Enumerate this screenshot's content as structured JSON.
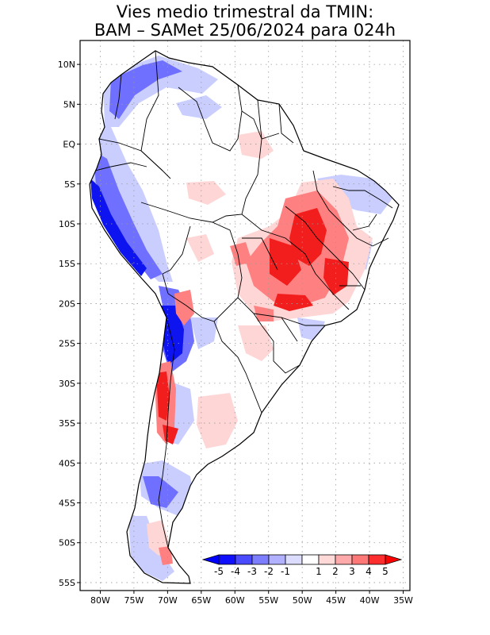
{
  "title": {
    "line1": "Vies medio trimestral da TMIN:",
    "line2": "BAM – SAMet 25/06/2024  para 024h"
  },
  "axes": {
    "lon_ticks": [
      "80W",
      "75W",
      "70W",
      "65W",
      "60W",
      "55W",
      "50W",
      "45W",
      "40W",
      "35W"
    ],
    "lat_ticks": [
      "10N",
      "5N",
      "EQ",
      "5S",
      "10S",
      "15S",
      "20S",
      "25S",
      "30S",
      "35S",
      "40S",
      "45S",
      "50S",
      "55S"
    ],
    "lon_values": [
      -80,
      -75,
      -70,
      -65,
      -60,
      -55,
      -50,
      -45,
      -40,
      -35
    ],
    "lat_values": [
      10,
      5,
      0,
      -5,
      -10,
      -15,
      -20,
      -25,
      -30,
      -35,
      -40,
      -45,
      -50,
      -55
    ],
    "lon_range": [
      -83,
      -34
    ],
    "lat_range": [
      -56,
      13
    ]
  },
  "legend": {
    "labels": [
      "-5",
      "-4",
      "-3",
      "-2",
      "-1",
      "1",
      "2",
      "3",
      "4",
      "5"
    ],
    "colors": [
      "#1010ff",
      "#4a4aff",
      "#7d7dff",
      "#b1b1ff",
      "#dcdcff",
      "#ffffff",
      "#ffd8d8",
      "#ffaaaa",
      "#ff7878",
      "#ff2e2e"
    ],
    "under_color": "#0000ff",
    "over_color": "#ff0000"
  },
  "colors": {
    "coast": "#000000",
    "border": "#000000",
    "grid": "#9a9a9a",
    "cold_strong": "#0d14f0",
    "cold_medium": "#6f70ff",
    "cold_light": "#c9ceff",
    "warm_strong": "#f21e1e",
    "warm_medium": "#ff8080",
    "warm_light": "#ffd6d6"
  }
}
